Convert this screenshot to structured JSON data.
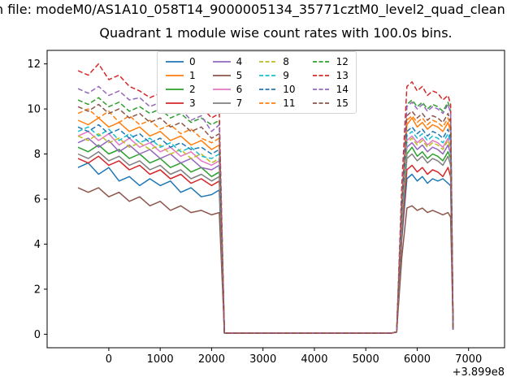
{
  "figure": {
    "window_title": "n file: modeM0/AS1A10_058T14_9000005134_35771cztM0_level2_quad_clean",
    "title": "Quadrant 1 module wise count rates with 100.0s bins."
  },
  "chart_data": {
    "type": "line",
    "title": "Quadrant 1 module wise count rates with 100.0s bins.",
    "xlabel": "",
    "ylabel": "",
    "x_offset_label": "+3.899e8",
    "xlim": [
      -1200,
      7700
    ],
    "ylim": [
      -0.6,
      12.6
    ],
    "x_ticks": [
      0,
      1000,
      2000,
      3000,
      4000,
      5000,
      6000,
      7000
    ],
    "y_ticks": [
      0,
      2,
      4,
      6,
      8,
      10,
      12
    ],
    "grid": false,
    "legend_position": "upper center-left, 4 columns",
    "legend_columns": 4,
    "x": [
      -600,
      -400,
      -200,
      0,
      200,
      400,
      600,
      800,
      1000,
      1200,
      1400,
      1600,
      1800,
      2000,
      2150,
      2250,
      2400,
      5500,
      5600,
      5700,
      5800,
      5900,
      6000,
      6100,
      6200,
      6300,
      6400,
      6500,
      6600,
      6650,
      6700
    ],
    "series": [
      {
        "name": "0",
        "color": "#1f77b4",
        "dash": false,
        "values": [
          7.4,
          7.6,
          7.1,
          7.4,
          6.8,
          7.0,
          6.6,
          6.9,
          6.6,
          6.8,
          6.3,
          6.5,
          6.1,
          6.2,
          6.4,
          0.05,
          0.05,
          0.05,
          0.1,
          4.2,
          6.9,
          7.1,
          6.8,
          7.0,
          6.7,
          6.9,
          6.8,
          6.9,
          6.7,
          6.6,
          0.2
        ]
      },
      {
        "name": "1",
        "color": "#ff7f0e",
        "dash": false,
        "values": [
          9.5,
          9.3,
          9.6,
          9.2,
          9.4,
          9.0,
          9.2,
          8.8,
          9.0,
          8.6,
          8.8,
          8.4,
          8.6,
          8.2,
          8.4,
          0.05,
          0.05,
          0.05,
          0.1,
          5.5,
          9.3,
          9.6,
          9.2,
          9.4,
          9.1,
          9.3,
          9.2,
          9.0,
          9.4,
          9.0,
          0.2
        ]
      },
      {
        "name": "2",
        "color": "#2ca02c",
        "dash": false,
        "values": [
          8.3,
          8.1,
          8.4,
          8.0,
          8.2,
          7.8,
          8.0,
          7.6,
          7.8,
          7.4,
          7.6,
          7.2,
          7.4,
          7.0,
          7.2,
          0.05,
          0.05,
          0.05,
          0.1,
          4.8,
          8.0,
          8.3,
          7.9,
          8.1,
          7.8,
          8.0,
          7.9,
          7.7,
          8.1,
          7.8,
          0.2
        ]
      },
      {
        "name": "3",
        "color": "#d62728",
        "dash": false,
        "values": [
          7.8,
          7.6,
          7.9,
          7.5,
          7.7,
          7.3,
          7.5,
          7.1,
          7.3,
          6.9,
          7.1,
          6.7,
          6.9,
          6.6,
          6.8,
          0.05,
          0.05,
          0.05,
          0.1,
          4.4,
          7.3,
          7.5,
          7.2,
          7.4,
          7.1,
          7.3,
          7.2,
          7.0,
          7.4,
          7.0,
          0.2
        ]
      },
      {
        "name": "4",
        "color": "#9467bd",
        "dash": false,
        "values": [
          8.5,
          8.7,
          8.3,
          8.6,
          8.1,
          8.4,
          8.0,
          8.2,
          7.8,
          8.0,
          7.6,
          7.8,
          7.4,
          7.3,
          7.5,
          0.05,
          0.05,
          0.05,
          0.1,
          5.0,
          8.3,
          8.5,
          8.2,
          8.4,
          8.1,
          8.3,
          8.2,
          8.0,
          8.4,
          8.0,
          0.2
        ]
      },
      {
        "name": "5",
        "color": "#8c564b",
        "dash": false,
        "values": [
          6.5,
          6.3,
          6.5,
          6.1,
          6.3,
          5.9,
          6.1,
          5.7,
          5.9,
          5.5,
          5.7,
          5.4,
          5.5,
          5.3,
          5.4,
          0.05,
          0.05,
          0.05,
          0.1,
          3.4,
          5.6,
          5.7,
          5.5,
          5.6,
          5.4,
          5.5,
          5.4,
          5.3,
          5.4,
          5.2,
          0.2
        ]
      },
      {
        "name": "6",
        "color": "#e377c2",
        "dash": false,
        "values": [
          8.8,
          9.0,
          8.6,
          8.9,
          8.4,
          8.7,
          8.3,
          8.5,
          8.1,
          8.3,
          7.9,
          8.1,
          7.7,
          7.5,
          7.7,
          0.05,
          0.05,
          0.05,
          0.1,
          5.2,
          8.6,
          8.8,
          8.5,
          8.7,
          8.4,
          8.6,
          8.5,
          8.3,
          8.7,
          8.3,
          0.2
        ]
      },
      {
        "name": "7",
        "color": "#7f7f7f",
        "dash": false,
        "values": [
          8.0,
          7.8,
          8.1,
          7.7,
          7.9,
          7.5,
          7.7,
          7.3,
          7.5,
          7.1,
          7.3,
          6.9,
          7.1,
          6.8,
          7.0,
          0.05,
          0.05,
          0.05,
          0.1,
          4.7,
          7.8,
          8.0,
          7.7,
          7.9,
          7.6,
          7.8,
          7.7,
          7.5,
          7.9,
          7.5,
          0.2
        ]
      },
      {
        "name": "8",
        "color": "#bcbd22",
        "dash": true,
        "values": [
          8.8,
          8.6,
          8.9,
          8.5,
          8.7,
          8.3,
          8.5,
          8.2,
          8.4,
          8.0,
          8.2,
          7.8,
          8.0,
          7.6,
          7.8,
          0.05,
          0.05,
          0.05,
          0.1,
          5.1,
          8.5,
          8.7,
          8.4,
          8.6,
          8.3,
          8.5,
          8.4,
          8.2,
          8.6,
          8.2,
          0.2
        ]
      },
      {
        "name": "9",
        "color": "#17becf",
        "dash": true,
        "values": [
          9.0,
          9.2,
          8.8,
          9.1,
          8.6,
          8.9,
          8.5,
          8.7,
          8.3,
          8.5,
          8.1,
          8.3,
          7.9,
          7.8,
          8.0,
          0.05,
          0.05,
          0.05,
          0.1,
          5.3,
          8.8,
          9.0,
          8.7,
          8.9,
          8.6,
          8.8,
          8.7,
          8.5,
          8.9,
          8.5,
          0.2
        ]
      },
      {
        "name": "10",
        "color": "#1f77b4",
        "dash": true,
        "values": [
          9.2,
          9.0,
          9.3,
          8.9,
          9.1,
          8.7,
          8.9,
          8.5,
          8.7,
          8.3,
          8.5,
          8.2,
          8.3,
          8.0,
          8.2,
          0.05,
          0.05,
          0.05,
          0.1,
          5.4,
          9.0,
          9.2,
          8.9,
          9.1,
          8.8,
          9.0,
          8.9,
          8.7,
          9.1,
          8.7,
          0.2
        ]
      },
      {
        "name": "11",
        "color": "#ff7f0e",
        "dash": true,
        "values": [
          9.8,
          10.0,
          9.6,
          9.9,
          9.4,
          9.7,
          9.3,
          9.5,
          9.1,
          9.3,
          8.9,
          9.1,
          8.7,
          8.5,
          8.7,
          0.05,
          0.05,
          0.05,
          0.1,
          5.7,
          9.5,
          9.7,
          9.4,
          9.6,
          9.3,
          9.5,
          9.4,
          9.2,
          9.6,
          9.2,
          0.2
        ]
      },
      {
        "name": "12",
        "color": "#2ca02c",
        "dash": true,
        "values": [
          10.4,
          10.2,
          10.5,
          10.1,
          10.3,
          9.9,
          10.1,
          9.8,
          10.0,
          9.6,
          9.8,
          9.4,
          9.6,
          9.3,
          9.5,
          0.05,
          0.05,
          0.05,
          0.1,
          6.1,
          10.2,
          10.4,
          10.1,
          10.3,
          10.0,
          10.2,
          10.1,
          9.9,
          10.3,
          9.9,
          0.2
        ]
      },
      {
        "name": "13",
        "color": "#d62728",
        "dash": true,
        "values": [
          11.7,
          11.5,
          12.0,
          11.3,
          11.5,
          11.0,
          10.8,
          10.5,
          10.7,
          10.2,
          10.4,
          9.9,
          10.1,
          9.6,
          9.8,
          0.05,
          0.05,
          0.05,
          0.1,
          6.6,
          11.0,
          11.2,
          10.8,
          11.0,
          10.6,
          10.8,
          10.7,
          10.4,
          10.6,
          10.2,
          0.2
        ]
      },
      {
        "name": "14",
        "color": "#9467bd",
        "dash": true,
        "values": [
          10.9,
          10.7,
          11.0,
          10.6,
          10.8,
          10.4,
          10.5,
          10.1,
          10.3,
          9.8,
          10.0,
          9.5,
          9.7,
          9.0,
          9.3,
          0.05,
          0.05,
          0.05,
          0.1,
          6.0,
          10.1,
          10.3,
          10.0,
          10.2,
          9.9,
          10.1,
          10.0,
          9.8,
          10.2,
          9.8,
          0.2
        ]
      },
      {
        "name": "15",
        "color": "#8c564b",
        "dash": true,
        "values": [
          10.1,
          9.9,
          10.2,
          9.8,
          10.0,
          9.6,
          9.8,
          9.4,
          9.6,
          9.2,
          9.4,
          9.0,
          9.2,
          8.7,
          8.9,
          0.05,
          0.05,
          0.05,
          0.1,
          5.8,
          9.7,
          9.9,
          9.6,
          9.8,
          9.5,
          9.7,
          9.6,
          9.4,
          9.8,
          9.4,
          0.2
        ]
      }
    ]
  }
}
